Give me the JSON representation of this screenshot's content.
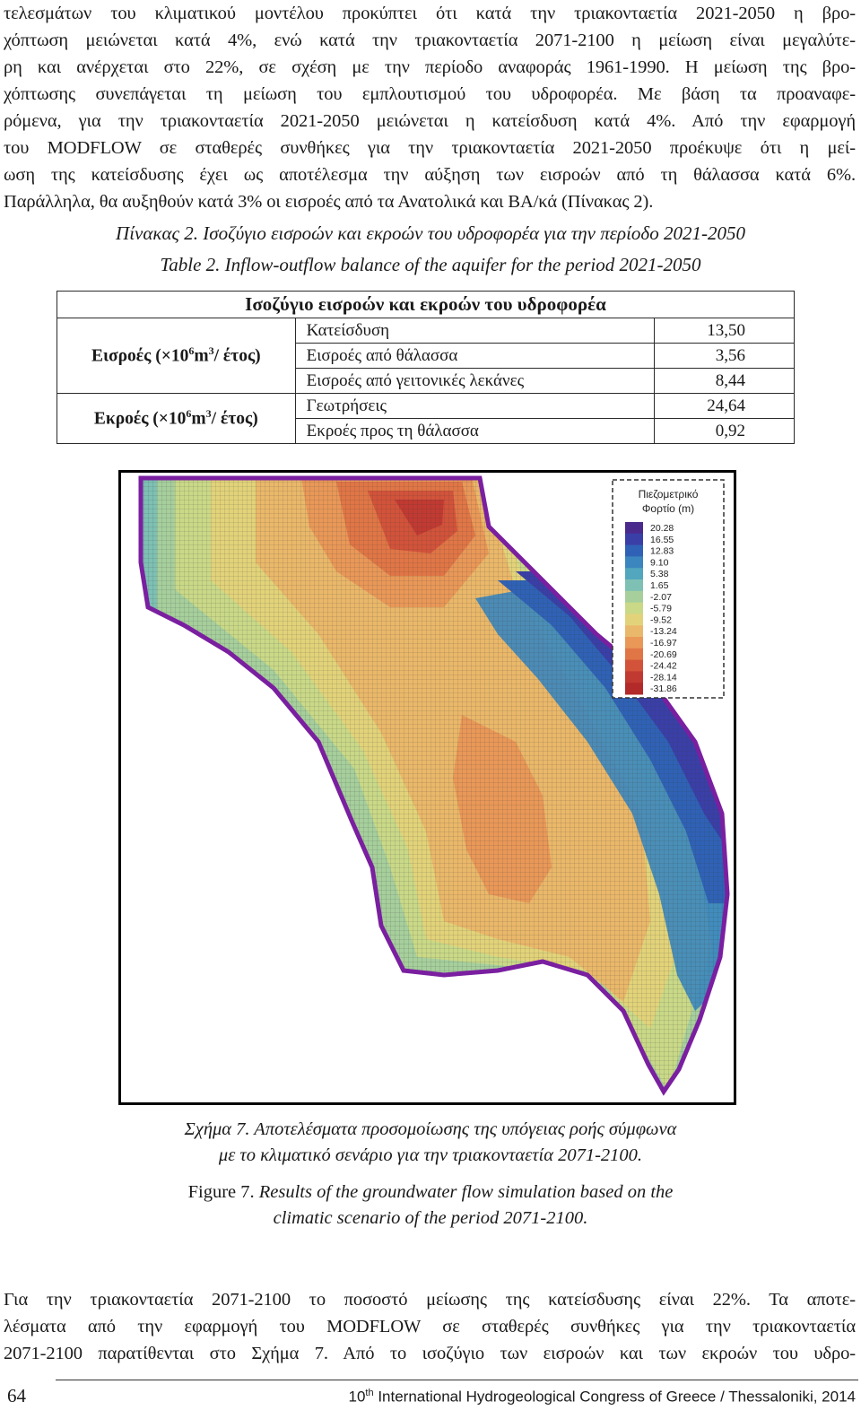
{
  "paragraph_top": [
    "τελεσμάτων του κλιματικού μοντέλου προκύπτει ότι κατά την τριακονταετία 2021-2050 η βρο-",
    "χόπτωση μειώνεται κατά 4%, ενώ κατά την τριακονταετία 2071-2100 η μείωση είναι μεγαλύτε-",
    "ρη και ανέρχεται στο 22%, σε σχέση με την περίοδο αναφοράς 1961-1990. Η μείωση της βρο-",
    "χόπτωσης συνεπάγεται τη μείωση του εμπλουτισμού του υδροφορέα. Με βάση τα προαναφε-",
    "ρόμενα, για την τριακονταετία 2021-2050 μειώνεται η κατείσδυση κατά 4%. Από την εφαρμογή",
    "του MODFLOW σε σταθερές συνθήκες για την τριακονταετία 2021-2050 προέκυψε ότι η μεί-",
    "ωση της κατείσδυσης έχει ως αποτέλεσμα την αύξηση των εισροών από τη θάλασσα κατά 6%.",
    "Παράλληλα, θα αυξηθούν κατά 3% οι εισροές από τα Ανατολικά και ΒΑ/κά (Πίνακας 2)."
  ],
  "table": {
    "caption_gr": "Πίνακας 2. Ισοζύγιο εισροών και εκροών του υδροφορέα για την περίοδο 2021-2050",
    "caption_en": "Table 2. Inflow-outflow balance of the aquifer for the period 2021-2050",
    "header": "Ισοζύγιο εισροών και εκροών του υδροφορέα",
    "groups": [
      {
        "label_prefix": "Εισροές (×10",
        "label_exp1": "6",
        "label_mid": "m",
        "label_exp2": "3",
        "label_suffix": "/ έτος)",
        "rows": [
          {
            "label": "Κατείσδυση",
            "value": "13,50"
          },
          {
            "label": "Εισροές από θάλασσα",
            "value": "3,56"
          },
          {
            "label": "Εισροές από γειτονικές λεκάνες",
            "value": "8,44"
          }
        ]
      },
      {
        "label_prefix": "Εκροές (×10",
        "label_exp1": "6",
        "label_mid": "m",
        "label_exp2": "3",
        "label_suffix": "/ έτος)",
        "rows": [
          {
            "label": "Γεωτρήσεις",
            "value": "24,64"
          },
          {
            "label": "Εκροές προς τη θάλασσα",
            "value": "0,92"
          }
        ]
      }
    ]
  },
  "figure": {
    "legend_title_line1": "Πιεζομετρικό",
    "legend_title_line2": "Φορτίο (m)",
    "legend_values": [
      "20.28",
      "16.55",
      "12.83",
      "9.10",
      "5.38",
      "1.65",
      "-2.07",
      "-5.79",
      "-9.52",
      "-13.24",
      "-16.97",
      "-20.69",
      "-24.42",
      "-28.14",
      "-31.86"
    ],
    "legend_colors": [
      "#4a2a8c",
      "#3a3fa8",
      "#2f62b6",
      "#3b86be",
      "#52a6bd",
      "#7ec0b4",
      "#a6cf9c",
      "#c9d987",
      "#e2d37a",
      "#eab86a",
      "#e99858",
      "#e07646",
      "#d2533a",
      "#c13a32",
      "#b32a2a"
    ],
    "caption_gr_line1": "Σχήμα 7. Αποτελέσματα προσομοίωσης της υπόγειας ροής σύμφωνα",
    "caption_gr_line2": "με το κλιματικό σενάριο για την τριακονταετία 2071-2100.",
    "caption_en_label": "Figure 7.",
    "caption_en_line1": "Results of the groundwater flow simulation based on the",
    "caption_en_line2": "climatic scenario of the period 2071-2100."
  },
  "paragraph_bottom": [
    "Για την τριακονταετία 2071-2100 το ποσοστό μείωσης της κατείσδυσης είναι 22%. Τα αποτε-",
    "λέσματα από την εφαρμογή του MODFLOW σε σταθερές συνθήκες για την τριακονταετία",
    "2071-2100 παρατίθενται στο Σχήμα 7. Από το ισοζύγιο των εισροών και των εκροών του υδρο-"
  ],
  "footer": {
    "page_number": "64",
    "ordinal_num": "10",
    "ordinal_suffix": "th",
    "congress": "International Hydrogeological Congress of Greece / Thessaloniki, 2014"
  }
}
